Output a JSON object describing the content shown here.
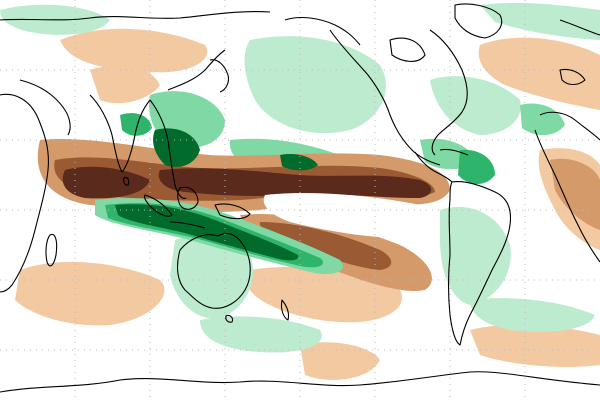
{
  "map": {
    "projection": "cylindrical-pacific-centered",
    "grid_lines": "dotted",
    "coastline_color": "#000000",
    "background_color": "#ffffff",
    "palette": {
      "strong_dry": "#5a2a1c",
      "dry": "#9a5a33",
      "moderate_dry": "#d49a6a",
      "light_dry": "#f2c9a0",
      "light_wet": "#bdebcf",
      "moderate_wet": "#7ed9a5",
      "wet": "#2fb46b",
      "strong_wet": "#006b2a"
    }
  }
}
